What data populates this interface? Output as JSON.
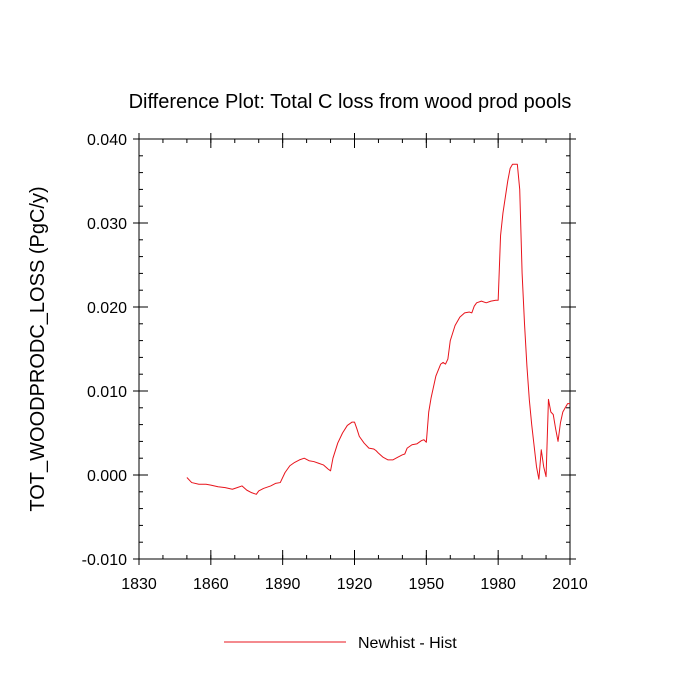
{
  "chart_data": {
    "type": "line",
    "title": "Difference Plot: Total C loss from wood prod pools",
    "ylabel": "TOT_WOODPRODC_LOSS  (PgC/y)",
    "xlabel": "",
    "xlim": [
      1830,
      2010
    ],
    "ylim": [
      -0.01,
      0.04
    ],
    "x_ticks": [
      1830,
      1860,
      1890,
      1920,
      1950,
      1980,
      2010
    ],
    "x_tick_labels": [
      "1830",
      "1860",
      "1890",
      "1920",
      "1950",
      "1980",
      "2010"
    ],
    "y_ticks": [
      -0.01,
      0.0,
      0.01,
      0.02,
      0.03,
      0.04
    ],
    "y_tick_labels": [
      "-0.010",
      "0.000",
      "0.010",
      "0.020",
      "0.030",
      "0.040"
    ],
    "legend_placement": "bottom-center",
    "series": [
      {
        "name": "Newhist - Hist",
        "color": "#e8141c",
        "x": [
          1850,
          1852,
          1855,
          1858,
          1860,
          1863,
          1866,
          1869,
          1871,
          1873,
          1875,
          1877,
          1879,
          1880,
          1882,
          1885,
          1887,
          1889,
          1891,
          1893,
          1895,
          1897,
          1899,
          1901,
          1903,
          1905,
          1907,
          1909,
          1910,
          1911,
          1913,
          1915,
          1917,
          1919,
          1920,
          1921,
          1922,
          1924,
          1926,
          1928,
          1929,
          1930,
          1932,
          1934,
          1936,
          1938,
          1940,
          1941,
          1942,
          1944,
          1946,
          1948,
          1949,
          1950,
          1951,
          1952,
          1954,
          1956,
          1957,
          1958,
          1959,
          1960,
          1962,
          1964,
          1966,
          1968,
          1969,
          1970,
          1971,
          1973,
          1975,
          1977,
          1979,
          1980,
          1981,
          1982,
          1984,
          1985,
          1986,
          1987,
          1988,
          1989,
          1990,
          1991,
          1992,
          1993,
          1994,
          1995,
          1996,
          1997,
          1998,
          1999,
          2000,
          2001,
          2002,
          2003,
          2004,
          2005,
          2006,
          2007,
          2008,
          2009,
          2010
        ],
        "values": [
          -0.0003,
          -0.0009,
          -0.0011,
          -0.0011,
          -0.0012,
          -0.0014,
          -0.0015,
          -0.0017,
          -0.0015,
          -0.0013,
          -0.0018,
          -0.0021,
          -0.0023,
          -0.0019,
          -0.0016,
          -0.0013,
          -0.001,
          -0.0009,
          0.0003,
          0.0011,
          0.0015,
          0.0018,
          0.002,
          0.0017,
          0.0016,
          0.0014,
          0.0012,
          0.0007,
          0.0005,
          0.002,
          0.0038,
          0.005,
          0.0059,
          0.0063,
          0.0063,
          0.0055,
          0.0046,
          0.0038,
          0.0032,
          0.0031,
          0.0029,
          0.0026,
          0.0021,
          0.0018,
          0.0018,
          0.0021,
          0.0024,
          0.0025,
          0.0032,
          0.0036,
          0.0037,
          0.0041,
          0.0042,
          0.0039,
          0.0075,
          0.0092,
          0.0118,
          0.0132,
          0.0134,
          0.0132,
          0.0138,
          0.016,
          0.0178,
          0.0188,
          0.0193,
          0.0194,
          0.0193,
          0.0201,
          0.0205,
          0.0207,
          0.0205,
          0.0207,
          0.0208,
          0.0208,
          0.0285,
          0.0312,
          0.035,
          0.0365,
          0.037,
          0.037,
          0.037,
          0.034,
          0.024,
          0.018,
          0.013,
          0.009,
          0.006,
          0.0035,
          0.001,
          -0.0005,
          0.003,
          0.001,
          -0.0002,
          0.009,
          0.0075,
          0.0072,
          0.0055,
          0.004,
          0.0062,
          0.0075,
          0.008,
          0.0085,
          0.0085
        ]
      }
    ]
  }
}
